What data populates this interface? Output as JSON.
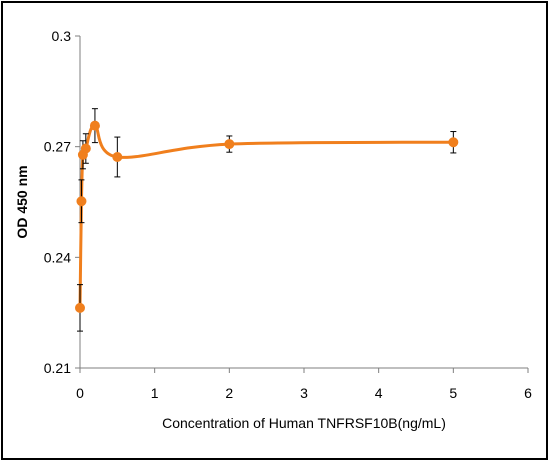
{
  "chart_data": {
    "type": "scatter",
    "title": "",
    "xlabel": "Concentration of Human TNFRSF10B(ng/mL)",
    "ylabel": "OD 450 nm",
    "xlim": [
      0,
      6
    ],
    "ylim": [
      0.21,
      0.3
    ],
    "x_ticks": [
      "0",
      "1",
      "2",
      "3",
      "4",
      "5",
      "6"
    ],
    "y_ticks": [
      "0.21",
      "0.24",
      "0.27",
      "0.3"
    ],
    "grid": false,
    "legend": "none",
    "series": [
      {
        "color": "#F07F1D",
        "smoothed": true,
        "x": [
          0,
          0.0195,
          0.039,
          0.078,
          0.2,
          0.5,
          2,
          5
        ],
        "y": [
          0.2263,
          0.2552,
          0.2678,
          0.2695,
          0.2757,
          0.2672,
          0.2707,
          0.2712
        ],
        "error": [
          0.0063,
          0.0058,
          0.0038,
          0.004,
          0.0046,
          0.0054,
          0.0022,
          0.0029
        ]
      }
    ]
  }
}
